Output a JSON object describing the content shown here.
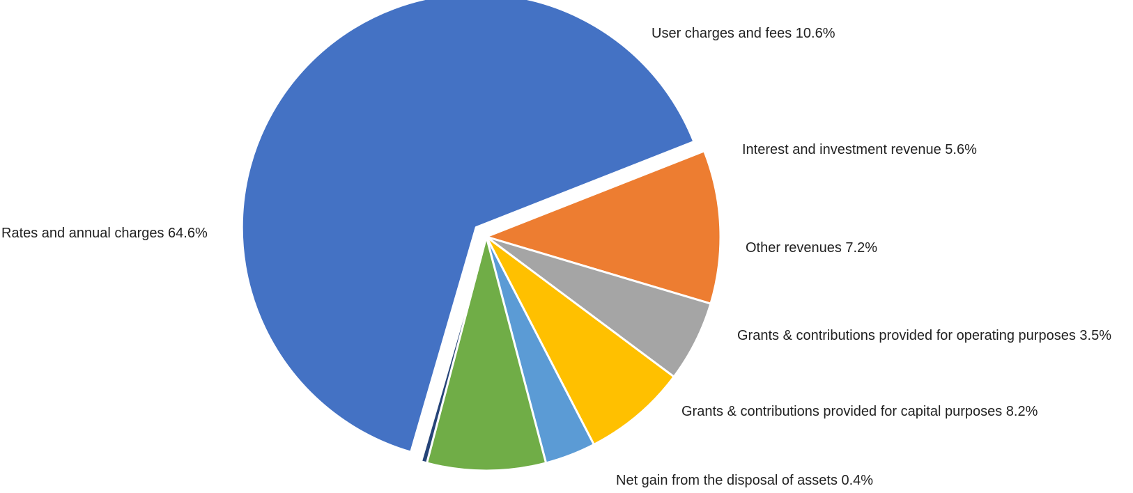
{
  "chart_data": {
    "type": "pie",
    "title": "",
    "slices": [
      {
        "label": "Rates and annual charges",
        "value": 64.6,
        "value_label": "64.6%",
        "color": "#4472C4",
        "exploded": true
      },
      {
        "label": "User charges and fees",
        "value": 10.6,
        "value_label": "10.6%",
        "color": "#ED7D31",
        "exploded": false
      },
      {
        "label": "Interest and investment revenue",
        "value": 5.6,
        "value_label": "5.6%",
        "color": "#A5A5A5",
        "exploded": false
      },
      {
        "label": "Other revenues",
        "value": 7.2,
        "value_label": "7.2%",
        "color": "#FFC000",
        "exploded": false
      },
      {
        "label": "Grants & contributions provided for operating purposes",
        "value": 3.5,
        "value_label": "3.5%",
        "color": "#5B9BD5",
        "exploded": false
      },
      {
        "label": "Grants & contributions provided for capital purposes",
        "value": 8.2,
        "value_label": "8.2%",
        "color": "#70AD47",
        "exploded": false
      },
      {
        "label": "Net gain from the disposal of assets",
        "value": 0.4,
        "value_label": "0.4%",
        "color": "#264478",
        "exploded": false
      }
    ],
    "legend": "none",
    "data_labels": "outside"
  }
}
